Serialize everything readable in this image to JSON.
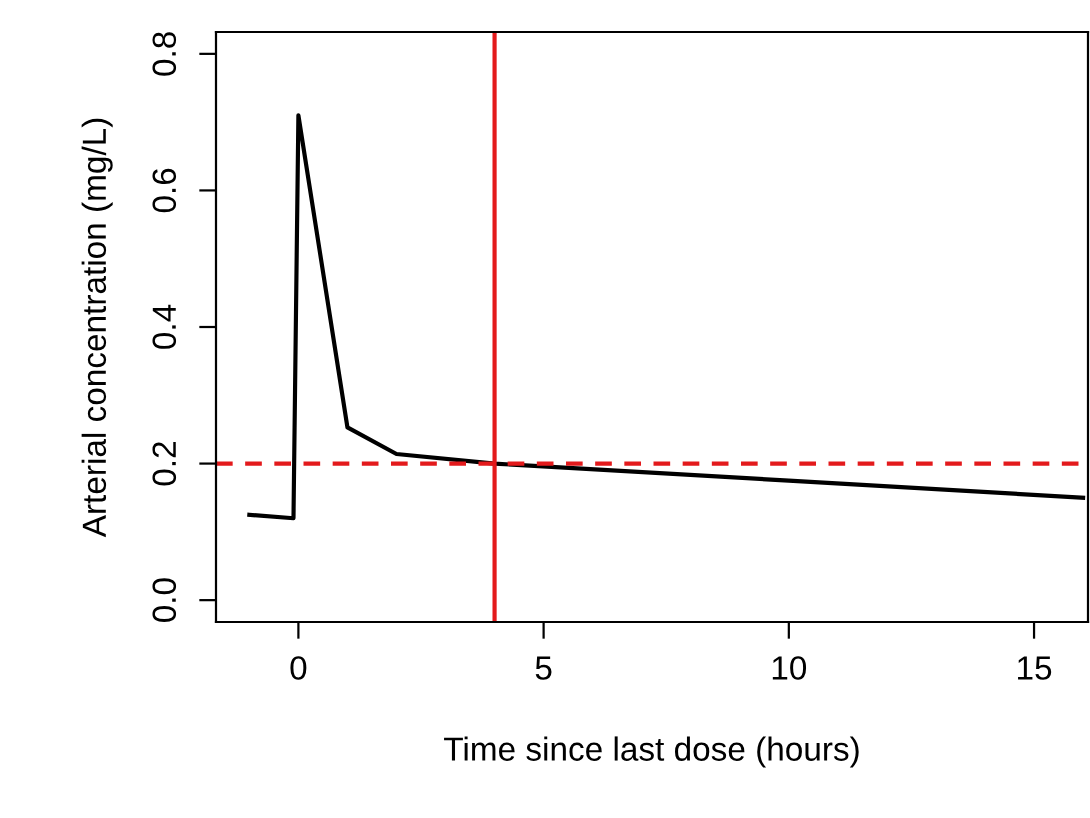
{
  "chart_data": {
    "type": "line",
    "xlabel": "Time since last dose (hours)",
    "ylabel": "Arterial concentration (mg/L)",
    "x": [
      -1,
      -0.1,
      0,
      1,
      2,
      4,
      10,
      16
    ],
    "series": [
      {
        "color": "#000000",
        "values": [
          0.125,
          0.12,
          0.71,
          0.253,
          0.214,
          0.2,
          0.175,
          0.15
        ]
      }
    ],
    "xlim": [
      -1.68,
      16.1
    ],
    "ylim": [
      -0.032,
      0.832
    ],
    "xticks": [
      0,
      5,
      10,
      15
    ],
    "yticks": [
      {
        "value": 0,
        "label": "0.0"
      },
      0.2,
      0.4,
      0.6,
      0.8
    ],
    "ref_lines": [
      {
        "axis": "y",
        "value": 0.2,
        "color": "#e31a1c",
        "line_style": "dashed"
      },
      {
        "axis": "x",
        "value": 4,
        "color": "#e31a1c",
        "line_style": "solid"
      }
    ],
    "grid": false,
    "legend": false,
    "marker": "none",
    "line_style": "solid"
  }
}
